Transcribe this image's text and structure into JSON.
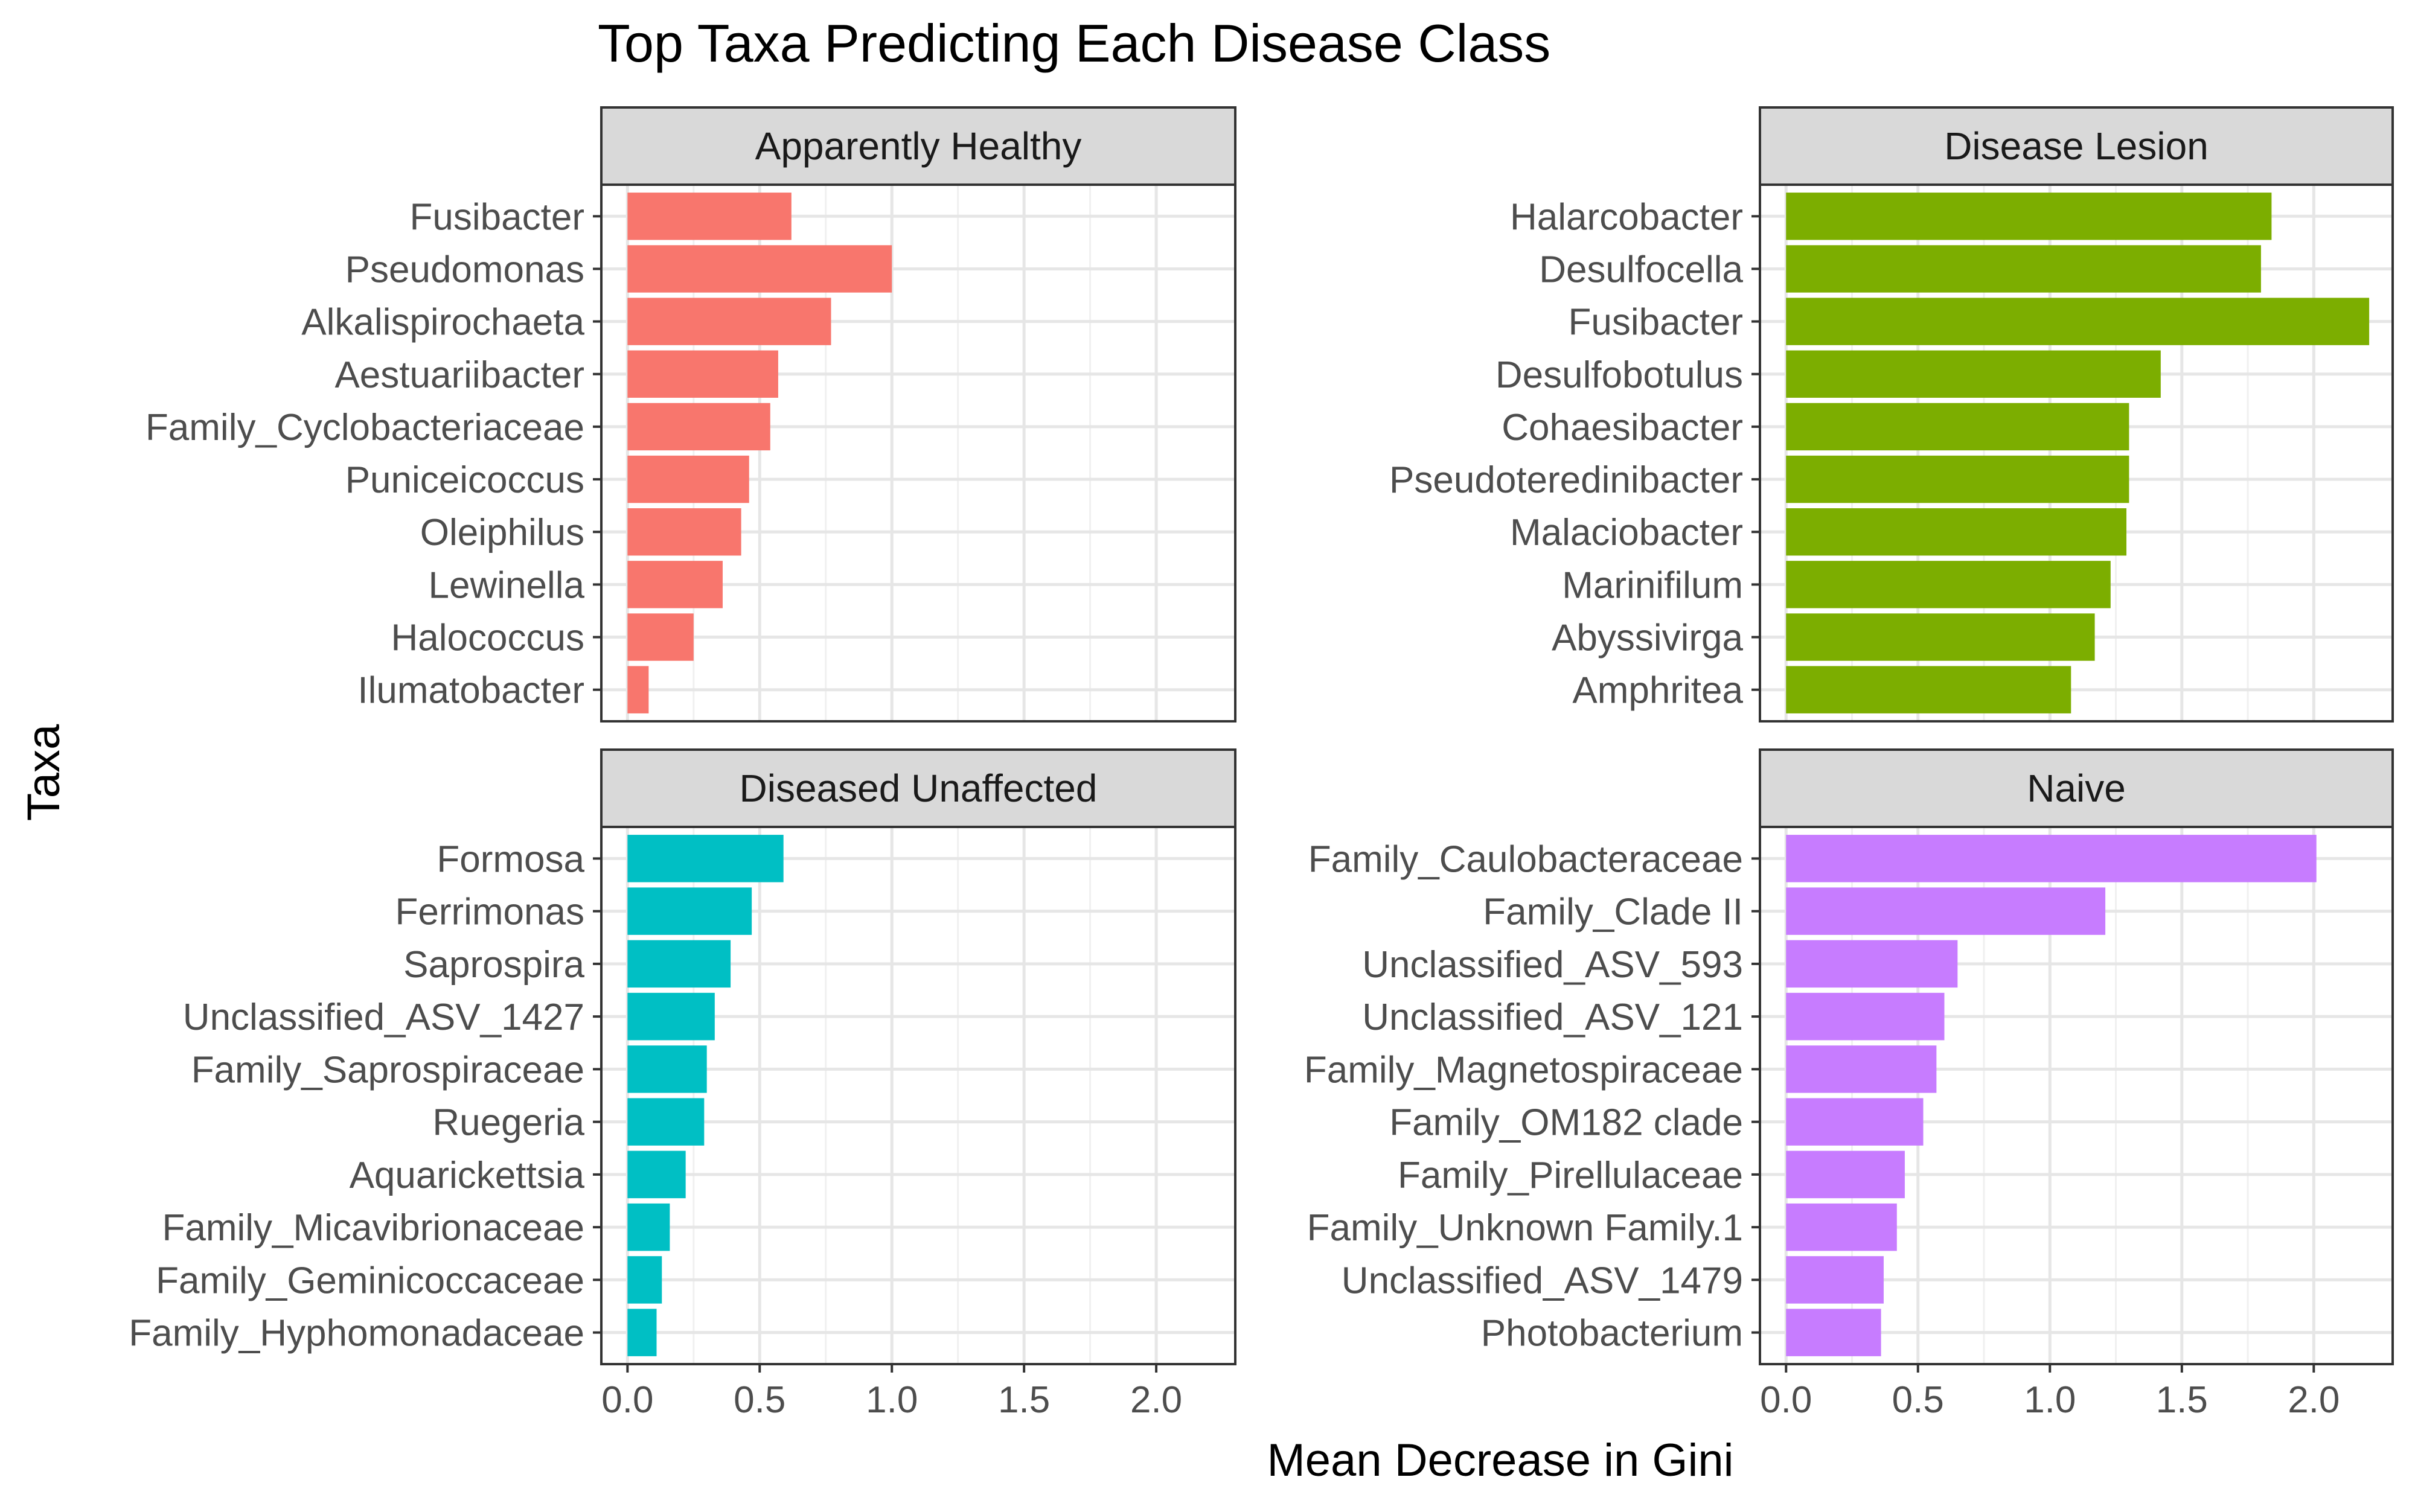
{
  "chart_data": {
    "type": "bar",
    "orientation": "horizontal",
    "title": "Top Taxa Predicting Each Disease Class",
    "xlabel": "Mean Decrease in Gini",
    "ylabel": "Taxa",
    "xlim": [
      0,
      2.2
    ],
    "x_ticks": [
      "0.0",
      "0.5",
      "1.0",
      "1.5",
      "2.0"
    ],
    "grid": true,
    "legend": "none",
    "panels": [
      {
        "name": "Apparently Healthy",
        "color": "#F8766D",
        "categories": [
          "Fusibacter",
          "Pseudomonas",
          "Alkalispirochaeta",
          "Aestuariibacter",
          "Family_Cyclobacteriaceae",
          "Puniceicoccus",
          "Oleiphilus",
          "Lewinella",
          "Halococcus",
          "Ilumatobacter"
        ],
        "values": [
          0.62,
          1.0,
          0.77,
          0.57,
          0.54,
          0.46,
          0.43,
          0.36,
          0.25,
          0.08
        ]
      },
      {
        "name": "Disease Lesion",
        "color": "#7CAE00",
        "categories": [
          "Halarcobacter",
          "Desulfocella",
          "Fusibacter",
          "Desulfobotulus",
          "Cohaesibacter",
          "Pseudoteredinibacter",
          "Malaciobacter",
          "Marinifilum",
          "Abyssivirga",
          "Amphritea"
        ],
        "values": [
          1.84,
          1.8,
          2.21,
          1.42,
          1.3,
          1.3,
          1.29,
          1.23,
          1.17,
          1.08
        ]
      },
      {
        "name": "Diseased Unaffected",
        "color": "#00BFC4",
        "categories": [
          "Formosa",
          "Ferrimonas",
          "Saprospira",
          "Unclassified_ASV_1427",
          "Family_Saprospiraceae",
          "Ruegeria",
          "Aquarickettsia",
          "Family_Micavibrionaceae",
          "Family_Geminicoccaceae",
          "Family_Hyphomonadaceae"
        ],
        "values": [
          0.59,
          0.47,
          0.39,
          0.33,
          0.3,
          0.29,
          0.22,
          0.16,
          0.13,
          0.11
        ]
      },
      {
        "name": "Naive",
        "color": "#C77CFF",
        "categories": [
          "Family_Caulobacteraceae",
          "Family_Clade II",
          "Unclassified_ASV_593",
          "Unclassified_ASV_121",
          "Family_Magnetospiraceae",
          "Family_OM182 clade",
          "Family_Pirellulaceae",
          "Family_Unknown Family.1",
          "Unclassified_ASV_1479",
          "Photobacterium"
        ],
        "values": [
          2.01,
          1.21,
          0.65,
          0.6,
          0.57,
          0.52,
          0.45,
          0.42,
          0.37,
          0.36
        ]
      }
    ]
  }
}
